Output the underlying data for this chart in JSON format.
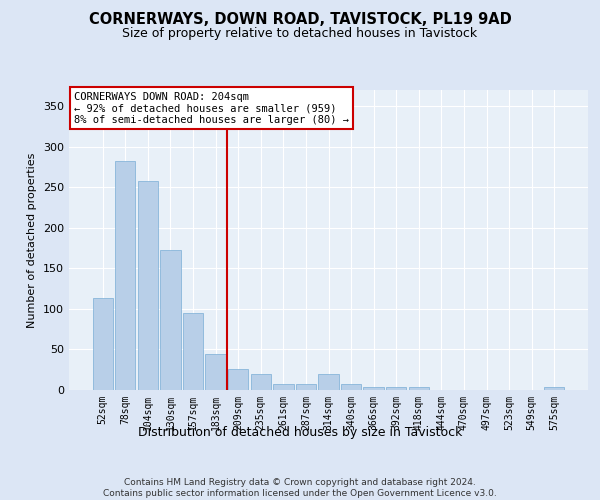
{
  "title": "CORNERWAYS, DOWN ROAD, TAVISTOCK, PL19 9AD",
  "subtitle": "Size of property relative to detached houses in Tavistock",
  "xlabel": "Distribution of detached houses by size in Tavistock",
  "ylabel": "Number of detached properties",
  "categories": [
    "52sqm",
    "78sqm",
    "104sqm",
    "130sqm",
    "157sqm",
    "183sqm",
    "209sqm",
    "235sqm",
    "261sqm",
    "287sqm",
    "314sqm",
    "340sqm",
    "366sqm",
    "392sqm",
    "418sqm",
    "444sqm",
    "470sqm",
    "497sqm",
    "523sqm",
    "549sqm",
    "575sqm"
  ],
  "values": [
    113,
    283,
    258,
    173,
    95,
    44,
    26,
    20,
    7,
    7,
    20,
    7,
    4,
    4,
    4,
    0,
    0,
    0,
    0,
    0,
    4
  ],
  "bar_color": "#b8cfe8",
  "bar_edge_color": "#7aaed6",
  "vline_color": "#cc0000",
  "vline_pos": 5.5,
  "annotation_line1": "CORNERWAYS DOWN ROAD: 204sqm",
  "annotation_line2": "← 92% of detached houses are smaller (959)",
  "annotation_line3": "8% of semi-detached houses are larger (80) →",
  "annotation_box_color": "#ffffff",
  "annotation_border_color": "#cc0000",
  "ylim": [
    0,
    370
  ],
  "yticks": [
    0,
    50,
    100,
    150,
    200,
    250,
    300,
    350
  ],
  "footer_line1": "Contains HM Land Registry data © Crown copyright and database right 2024.",
  "footer_line2": "Contains public sector information licensed under the Open Government Licence v3.0.",
  "bg_color": "#dce6f5",
  "plot_bg_color": "#e8f0f8",
  "grid_color": "#ffffff",
  "title_fontsize": 10.5,
  "subtitle_fontsize": 9,
  "ylabel_fontsize": 8,
  "xlabel_fontsize": 9,
  "tick_fontsize": 7,
  "footer_fontsize": 6.5,
  "annotation_fontsize": 7.5
}
